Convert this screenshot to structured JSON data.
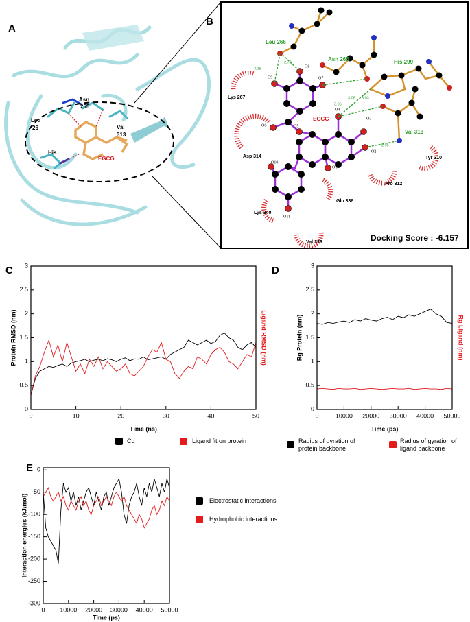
{
  "figure_a": {
    "letter": "A",
    "labels": [
      "Asn",
      "265",
      "Leu",
      "26",
      "Val",
      "313",
      "His",
      "EGCG"
    ]
  },
  "figure_b": {
    "letter": "B",
    "hbond_residues": [
      "Leu 266",
      "Asn 265",
      "His 299",
      "Val 313"
    ],
    "hydrophobic_residues": [
      "Lys 267",
      "Asp 314",
      "Tyr 310",
      "Pro 312",
      "Glu 338",
      "Lys 340",
      "Val 339"
    ],
    "ligand": "EGCG",
    "atoms": [
      "O9",
      "O8",
      "O7",
      "O6",
      "O5",
      "O4",
      "O3",
      "O2",
      "O1",
      "O10",
      "O11"
    ],
    "distances": [
      "3.18",
      "2.70",
      "3.06",
      "3.08",
      "3.03",
      "2.95"
    ],
    "docking_score": "Docking Score : -6.157"
  },
  "chart_data": [
    {
      "type": "line",
      "panel_label": "C",
      "xlabel": "Time (ns)",
      "ylabel": "Protein RMSD (nm)",
      "y2label": "Ligand RMSD (nm)",
      "y2color": "#e41a1c",
      "xlim": [
        0,
        50
      ],
      "xticks": [
        0,
        10,
        20,
        30,
        40,
        50
      ],
      "ylim": [
        0,
        3
      ],
      "yticks": [
        0,
        0.5,
        1,
        1.5,
        2,
        2.5,
        3
      ],
      "x": [
        0,
        1,
        2,
        3,
        4,
        5,
        6,
        7,
        8,
        9,
        10,
        11,
        12,
        13,
        14,
        15,
        16,
        17,
        18,
        19,
        20,
        21,
        22,
        23,
        24,
        25,
        26,
        27,
        28,
        29,
        30,
        31,
        32,
        33,
        34,
        35,
        36,
        37,
        38,
        39,
        40,
        41,
        42,
        43,
        44,
        45,
        46,
        47,
        48,
        49,
        50
      ],
      "series": [
        {
          "name": "Cα",
          "color": "#000000",
          "values": [
            0.3,
            0.65,
            0.8,
            0.85,
            0.9,
            0.88,
            0.92,
            0.95,
            0.9,
            0.97,
            1.0,
            1.02,
            1.05,
            1.0,
            1.03,
            1.05,
            1.02,
            1.06,
            1.04,
            1.0,
            1.05,
            1.08,
            1.02,
            1.06,
            1.05,
            1.1,
            1.04,
            1.06,
            1.08,
            1.1,
            1.05,
            1.15,
            1.2,
            1.25,
            1.3,
            1.45,
            1.4,
            1.35,
            1.4,
            1.45,
            1.38,
            1.42,
            1.55,
            1.6,
            1.5,
            1.45,
            1.3,
            1.25,
            1.35,
            1.4,
            1.3
          ]
        },
        {
          "name": "Ligand fit on protein",
          "color": "#e41a1c",
          "values": [
            0.3,
            0.7,
            0.9,
            1.2,
            1.45,
            1.1,
            1.35,
            1.0,
            1.4,
            1.1,
            0.8,
            0.95,
            0.75,
            1.05,
            0.9,
            1.1,
            0.85,
            1.0,
            0.9,
            0.8,
            0.85,
            0.95,
            0.75,
            0.7,
            0.8,
            0.9,
            1.1,
            1.25,
            1.2,
            1.4,
            1.05,
            1.0,
            0.75,
            0.65,
            0.8,
            0.9,
            0.85,
            1.1,
            1.05,
            0.95,
            1.15,
            1.25,
            1.3,
            1.2,
            1.0,
            0.95,
            0.85,
            1.0,
            1.15,
            1.1,
            1.4
          ]
        }
      ]
    },
    {
      "type": "line",
      "panel_label": "D",
      "xlabel": "Time (ps)",
      "ylabel": "Rg Protein (nm)",
      "y2label": "Rg Ligand (nm)",
      "y2color": "#e41a1c",
      "xlim": [
        0,
        50000
      ],
      "xticks": [
        0,
        10000,
        20000,
        30000,
        40000,
        50000
      ],
      "ylim": [
        0,
        3
      ],
      "yticks": [
        0,
        0.5,
        1,
        1.5,
        2,
        2.5,
        3
      ],
      "x": [
        0,
        2000,
        4000,
        6000,
        8000,
        10000,
        12000,
        14000,
        16000,
        18000,
        20000,
        22000,
        24000,
        26000,
        28000,
        30000,
        32000,
        34000,
        36000,
        38000,
        40000,
        42000,
        44000,
        46000,
        48000,
        50000
      ],
      "series": [
        {
          "name": "Radius of gyration of protein backbone",
          "color": "#000000",
          "values": [
            1.8,
            1.78,
            1.82,
            1.8,
            1.83,
            1.85,
            1.82,
            1.88,
            1.85,
            1.9,
            1.87,
            1.85,
            1.9,
            1.93,
            1.88,
            1.95,
            1.92,
            1.98,
            1.95,
            2.0,
            2.05,
            2.1,
            2.0,
            1.95,
            1.82,
            1.8
          ]
        },
        {
          "name": "Radius of gyration of ligand backbone",
          "color": "#e41a1c",
          "values": [
            0.43,
            0.44,
            0.43,
            0.42,
            0.44,
            0.43,
            0.43,
            0.44,
            0.42,
            0.43,
            0.44,
            0.43,
            0.42,
            0.43,
            0.44,
            0.43,
            0.43,
            0.44,
            0.42,
            0.43,
            0.44,
            0.43,
            0.43,
            0.42,
            0.44,
            0.43
          ]
        }
      ]
    },
    {
      "type": "line",
      "panel_label": "E",
      "xlabel": "Time (ps)",
      "ylabel": "Interaction energies  (kJ/mol)",
      "xlim": [
        0,
        50000
      ],
      "xticks": [
        0,
        10000,
        20000,
        30000,
        40000,
        50000
      ],
      "ylim": [
        -300,
        5
      ],
      "yticks": [
        -300,
        -250,
        -200,
        -150,
        -100,
        -50,
        0
      ],
      "x": [
        0,
        1000,
        2000,
        3000,
        4000,
        5000,
        6000,
        7000,
        8000,
        9000,
        10000,
        11000,
        12000,
        13000,
        14000,
        15000,
        16000,
        17000,
        18000,
        19000,
        20000,
        21000,
        22000,
        23000,
        24000,
        25000,
        26000,
        27000,
        28000,
        29000,
        30000,
        31000,
        32000,
        33000,
        34000,
        35000,
        36000,
        37000,
        38000,
        39000,
        40000,
        41000,
        42000,
        43000,
        44000,
        45000,
        46000,
        47000,
        48000,
        49000,
        50000
      ],
      "series": [
        {
          "name": "Electrostatic interactions",
          "color": "#000000",
          "values": [
            -50,
            -130,
            -150,
            -160,
            -170,
            -180,
            -210,
            -90,
            -30,
            -50,
            -40,
            -70,
            -50,
            -80,
            -60,
            -90,
            -70,
            -50,
            -40,
            -60,
            -80,
            -50,
            -70,
            -90,
            -60,
            -50,
            -80,
            -60,
            -40,
            -30,
            -20,
            -50,
            -100,
            -120,
            -80,
            -60,
            -50,
            -30,
            -60,
            -80,
            -40,
            -60,
            -30,
            -50,
            -20,
            -40,
            -60,
            -30,
            -50,
            -20,
            -40
          ]
        },
        {
          "name": "Hydrophobic interactions",
          "color": "#e41a1c",
          "values": [
            -60,
            -50,
            -40,
            -60,
            -70,
            -60,
            -50,
            -70,
            -60,
            -80,
            -90,
            -70,
            -80,
            -90,
            -70,
            -60,
            -80,
            -70,
            -90,
            -100,
            -80,
            -70,
            -60,
            -80,
            -70,
            -60,
            -70,
            -80,
            -60,
            -50,
            -60,
            -70,
            -60,
            -80,
            -90,
            -100,
            -110,
            -120,
            -100,
            -110,
            -130,
            -120,
            -110,
            -90,
            -80,
            -100,
            -90,
            -70,
            -80,
            -60,
            -70
          ]
        }
      ]
    }
  ]
}
